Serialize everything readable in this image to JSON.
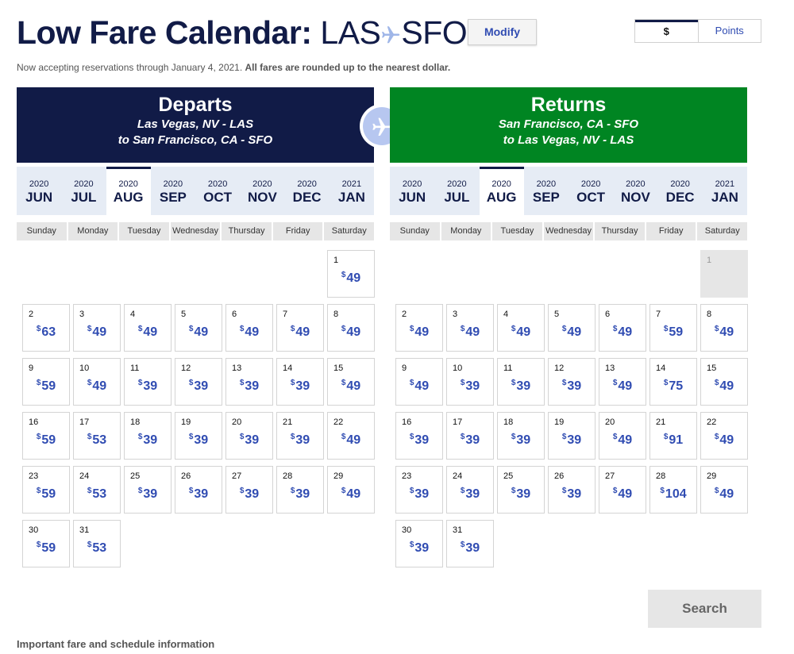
{
  "header": {
    "title_prefix": "Low Fare Calendar:",
    "origin": "LAS",
    "destination": "SFO",
    "modify_label": "Modify",
    "currency_options": [
      "$",
      "Points"
    ],
    "selected_currency": "$",
    "notice_text": "Now accepting reservations through January 4, 2021.",
    "notice_bold": "All fares are rounded up to the nearest dollar."
  },
  "weekdays": [
    "Sunday",
    "Monday",
    "Tuesday",
    "Wednesday",
    "Thursday",
    "Friday",
    "Saturday"
  ],
  "currency_symbol": "$",
  "departs": {
    "heading": "Departs",
    "route_line1": "Las Vegas, NV - LAS",
    "route_line2": "to  San Francisco, CA - SFO",
    "months": [
      {
        "year": "2020",
        "month": "JUN"
      },
      {
        "year": "2020",
        "month": "JUL"
      },
      {
        "year": "2020",
        "month": "AUG"
      },
      {
        "year": "2020",
        "month": "SEP"
      },
      {
        "year": "2020",
        "month": "OCT"
      },
      {
        "year": "2020",
        "month": "NOV"
      },
      {
        "year": "2020",
        "month": "DEC"
      },
      {
        "year": "2021",
        "month": "JAN"
      }
    ],
    "active_month": "AUG",
    "first_weekday": 6,
    "days": [
      {
        "day": "1",
        "price": "49"
      },
      {
        "day": "2",
        "price": "63"
      },
      {
        "day": "3",
        "price": "49"
      },
      {
        "day": "4",
        "price": "49"
      },
      {
        "day": "5",
        "price": "49"
      },
      {
        "day": "6",
        "price": "49"
      },
      {
        "day": "7",
        "price": "49"
      },
      {
        "day": "8",
        "price": "49"
      },
      {
        "day": "9",
        "price": "59"
      },
      {
        "day": "10",
        "price": "49"
      },
      {
        "day": "11",
        "price": "39"
      },
      {
        "day": "12",
        "price": "39"
      },
      {
        "day": "13",
        "price": "39"
      },
      {
        "day": "14",
        "price": "39"
      },
      {
        "day": "15",
        "price": "49"
      },
      {
        "day": "16",
        "price": "59"
      },
      {
        "day": "17",
        "price": "53"
      },
      {
        "day": "18",
        "price": "39"
      },
      {
        "day": "19",
        "price": "39"
      },
      {
        "day": "20",
        "price": "39"
      },
      {
        "day": "21",
        "price": "39"
      },
      {
        "day": "22",
        "price": "49"
      },
      {
        "day": "23",
        "price": "59"
      },
      {
        "day": "24",
        "price": "53"
      },
      {
        "day": "25",
        "price": "39"
      },
      {
        "day": "26",
        "price": "39"
      },
      {
        "day": "27",
        "price": "39"
      },
      {
        "day": "28",
        "price": "39"
      },
      {
        "day": "29",
        "price": "49"
      },
      {
        "day": "30",
        "price": "59"
      },
      {
        "day": "31",
        "price": "53"
      }
    ]
  },
  "returns": {
    "heading": "Returns",
    "route_line1": "San Francisco, CA - SFO",
    "route_line2": "to  Las Vegas, NV - LAS",
    "months": [
      {
        "year": "2020",
        "month": "JUN"
      },
      {
        "year": "2020",
        "month": "JUL"
      },
      {
        "year": "2020",
        "month": "AUG"
      },
      {
        "year": "2020",
        "month": "SEP"
      },
      {
        "year": "2020",
        "month": "OCT"
      },
      {
        "year": "2020",
        "month": "NOV"
      },
      {
        "year": "2020",
        "month": "DEC"
      },
      {
        "year": "2021",
        "month": "JAN"
      }
    ],
    "active_month": "AUG",
    "first_weekday": 6,
    "days": [
      {
        "day": "1",
        "price": null,
        "disabled": true
      },
      {
        "day": "2",
        "price": "49"
      },
      {
        "day": "3",
        "price": "49"
      },
      {
        "day": "4",
        "price": "49"
      },
      {
        "day": "5",
        "price": "49"
      },
      {
        "day": "6",
        "price": "49"
      },
      {
        "day": "7",
        "price": "59"
      },
      {
        "day": "8",
        "price": "49"
      },
      {
        "day": "9",
        "price": "49"
      },
      {
        "day": "10",
        "price": "39"
      },
      {
        "day": "11",
        "price": "39"
      },
      {
        "day": "12",
        "price": "39"
      },
      {
        "day": "13",
        "price": "49"
      },
      {
        "day": "14",
        "price": "75"
      },
      {
        "day": "15",
        "price": "49"
      },
      {
        "day": "16",
        "price": "39"
      },
      {
        "day": "17",
        "price": "39"
      },
      {
        "day": "18",
        "price": "39"
      },
      {
        "day": "19",
        "price": "39"
      },
      {
        "day": "20",
        "price": "49"
      },
      {
        "day": "21",
        "price": "91"
      },
      {
        "day": "22",
        "price": "49"
      },
      {
        "day": "23",
        "price": "39"
      },
      {
        "day": "24",
        "price": "39"
      },
      {
        "day": "25",
        "price": "39"
      },
      {
        "day": "26",
        "price": "39"
      },
      {
        "day": "27",
        "price": "49"
      },
      {
        "day": "28",
        "price": "104"
      },
      {
        "day": "29",
        "price": "49"
      },
      {
        "day": "30",
        "price": "39"
      },
      {
        "day": "31",
        "price": "39"
      }
    ]
  },
  "search_label": "Search",
  "fine_print_link": "Important fare and schedule information",
  "colors": {
    "navy": "#111b47",
    "green": "#008522",
    "link_blue": "#304cb2",
    "tab_bg": "#e6ecf5"
  }
}
